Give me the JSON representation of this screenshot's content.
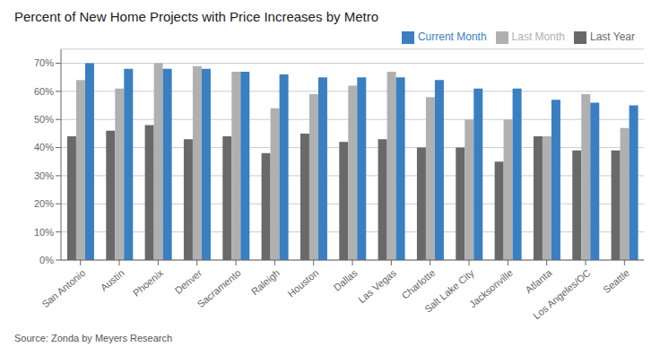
{
  "chart_data": {
    "type": "bar",
    "title": "Percent of New Home Projects with Price Increases by Metro",
    "annotations": [
      "Source: Zonda by Meyers Research"
    ],
    "categories": [
      "San Antonio",
      "Austin",
      "Phoenix",
      "Denver",
      "Sacramento",
      "Raleigh",
      "Houston",
      "Dallas",
      "Las Vegas",
      "Charlotte",
      "Salt Lake City",
      "Jacksonville",
      "Atlanta",
      "Los Angeles/OC",
      "Seattle"
    ],
    "series": [
      {
        "name": "Last Year",
        "color": "#696969",
        "values": [
          44,
          46,
          48,
          43,
          44,
          38,
          45,
          42,
          43,
          40,
          40,
          35,
          44,
          39,
          39
        ]
      },
      {
        "name": "Last Month",
        "color": "#b0b0b0",
        "values": [
          64,
          61,
          70,
          69,
          67,
          54,
          59,
          62,
          67,
          58,
          50,
          50,
          44,
          59,
          47
        ]
      },
      {
        "name": "Current Month",
        "color": "#3a7fc1",
        "values": [
          70,
          68,
          68,
          68,
          67,
          66,
          65,
          65,
          65,
          64,
          61,
          61,
          57,
          56,
          55
        ]
      }
    ],
    "ylim": [
      0,
      75
    ],
    "yticks": [
      {
        "value": 0,
        "label": "0%"
      },
      {
        "value": 10,
        "label": "10%"
      },
      {
        "value": 20,
        "label": "20%"
      },
      {
        "value": 30,
        "label": "30%"
      },
      {
        "value": 40,
        "label": "40%"
      },
      {
        "value": 50,
        "label": "50%"
      },
      {
        "value": 60,
        "label": "60%"
      },
      {
        "value": 70,
        "label": "70%"
      }
    ],
    "grid": true,
    "legend": "upper right"
  }
}
